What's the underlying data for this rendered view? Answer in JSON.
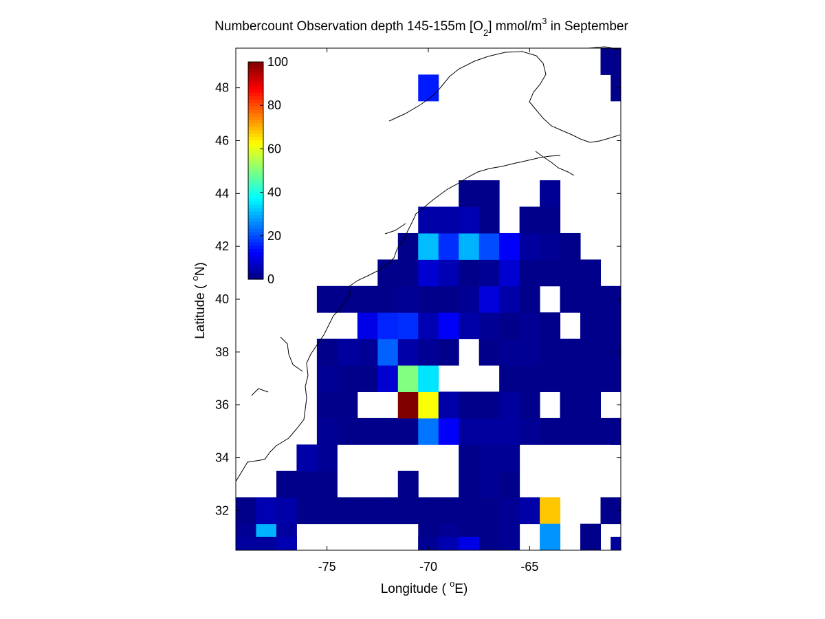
{
  "chart_data": {
    "type": "heatmap",
    "title": {
      "main": "Numbercount Observation depth 145-155m [O",
      "sub": "2",
      "rest": "] mmol/m",
      "sup": "3",
      "tail": " in September"
    },
    "xlabel": {
      "pre": "Longitude ( ",
      "sup": "o",
      "post": "E)"
    },
    "ylabel": {
      "pre": "Latitude ( ",
      "sup": "o",
      "post": "N)"
    },
    "xlim": [
      -79.5,
      -60.5
    ],
    "ylim": [
      30.5,
      49.5
    ],
    "xticks": [
      -75,
      -70,
      -65
    ],
    "xtick_labels": [
      "-75",
      "-70",
      "-65"
    ],
    "yticks": [
      32,
      34,
      36,
      38,
      40,
      42,
      44,
      46,
      48
    ],
    "ytick_labels": [
      "32",
      "34",
      "36",
      "38",
      "40",
      "42",
      "44",
      "46",
      "48"
    ],
    "cell_size_deg": 1,
    "colormap": "jet",
    "color_limits": [
      0,
      100
    ],
    "colorbar": {
      "ticks": [
        0,
        20,
        40,
        60,
        80,
        100
      ],
      "tick_labels": [
        "0",
        "20",
        "40",
        "60",
        "80",
        "100"
      ],
      "placement": "inside upper-left"
    },
    "coastline": "East coast of North America, thin black line",
    "cells": [
      [
        -79,
        31,
        2
      ],
      [
        -78,
        31,
        30
      ],
      [
        -77,
        31,
        3
      ],
      [
        -79,
        32,
        1
      ],
      [
        -78,
        32,
        5
      ],
      [
        -77,
        32,
        4
      ],
      [
        -76,
        32,
        1
      ],
      [
        -75,
        32,
        1
      ],
      [
        -74,
        32,
        1
      ],
      [
        -73,
        32,
        1
      ],
      [
        -72,
        32,
        1
      ],
      [
        -71,
        32,
        1
      ],
      [
        -70,
        32,
        1
      ],
      [
        -69,
        32,
        1
      ],
      [
        -68,
        32,
        1
      ],
      [
        -67,
        32,
        1
      ],
      [
        -66,
        32,
        2
      ],
      [
        -65,
        32,
        4
      ],
      [
        -64,
        32,
        68
      ],
      [
        -61,
        32,
        1
      ],
      [
        -70,
        31,
        1
      ],
      [
        -69,
        31,
        2
      ],
      [
        -68,
        31,
        1
      ],
      [
        -67,
        31,
        1
      ],
      [
        -66,
        31,
        2
      ],
      [
        -64,
        31,
        27
      ],
      [
        -62,
        31,
        1
      ],
      [
        -79,
        30.5,
        3
      ],
      [
        -78,
        30.5,
        3
      ],
      [
        -77,
        30.5,
        5
      ],
      [
        -70,
        30.5,
        2
      ],
      [
        -69,
        30.5,
        5
      ],
      [
        -68,
        30.5,
        10
      ],
      [
        -60.5,
        30.5,
        3
      ],
      [
        -77,
        33,
        1
      ],
      [
        -76,
        33,
        1
      ],
      [
        -75,
        33,
        1
      ],
      [
        -71,
        33,
        1
      ],
      [
        -68,
        33,
        1
      ],
      [
        -67,
        33,
        2
      ],
      [
        -66,
        33,
        1
      ],
      [
        -76,
        34,
        4
      ],
      [
        -75,
        34,
        2
      ],
      [
        -68,
        34,
        1
      ],
      [
        -67,
        34,
        2
      ],
      [
        -66,
        34,
        2
      ],
      [
        -75,
        35,
        2
      ],
      [
        -74,
        35,
        1
      ],
      [
        -73,
        35,
        1
      ],
      [
        -72,
        35,
        1
      ],
      [
        -71,
        35,
        1
      ],
      [
        -70,
        35,
        24
      ],
      [
        -69,
        35,
        12
      ],
      [
        -68,
        35,
        3
      ],
      [
        -67,
        35,
        3
      ],
      [
        -66,
        35,
        3
      ],
      [
        -65,
        35,
        2
      ],
      [
        -64,
        35,
        1
      ],
      [
        -63,
        35,
        1
      ],
      [
        -62,
        35,
        1
      ],
      [
        -61,
        35,
        1
      ],
      [
        -60.5,
        35,
        1
      ],
      [
        -75,
        36,
        1
      ],
      [
        -74,
        36,
        1
      ],
      [
        -71,
        36,
        100
      ],
      [
        -70,
        36,
        62
      ],
      [
        -69,
        36,
        4
      ],
      [
        -68,
        36,
        1
      ],
      [
        -67,
        36,
        1
      ],
      [
        -66,
        36,
        3
      ],
      [
        -65,
        36,
        1
      ],
      [
        -63,
        36,
        1
      ],
      [
        -62,
        36,
        1
      ],
      [
        -75,
        37,
        2
      ],
      [
        -74,
        37,
        1
      ],
      [
        -73,
        37,
        1
      ],
      [
        -72,
        37,
        8
      ],
      [
        -71,
        37,
        50
      ],
      [
        -70,
        37,
        35
      ],
      [
        -66,
        37,
        1
      ],
      [
        -65,
        37,
        1
      ],
      [
        -64,
        37,
        1
      ],
      [
        -63,
        37,
        1
      ],
      [
        -62,
        37,
        1
      ],
      [
        -61,
        37,
        1
      ],
      [
        -75,
        38,
        1
      ],
      [
        -74,
        38,
        3
      ],
      [
        -73,
        38,
        2
      ],
      [
        -72,
        38,
        22
      ],
      [
        -71,
        38,
        4
      ],
      [
        -70,
        38,
        2
      ],
      [
        -69,
        38,
        1
      ],
      [
        -67,
        38,
        1
      ],
      [
        -66,
        38,
        2
      ],
      [
        -65,
        38,
        2
      ],
      [
        -64,
        38,
        1
      ],
      [
        -63,
        38,
        1
      ],
      [
        -62,
        38,
        1
      ],
      [
        -61,
        38,
        1
      ],
      [
        -73,
        39,
        10
      ],
      [
        -72,
        39,
        16
      ],
      [
        -71,
        39,
        17
      ],
      [
        -70,
        39,
        5
      ],
      [
        -69,
        39,
        12
      ],
      [
        -68,
        39,
        4
      ],
      [
        -67,
        39,
        2
      ],
      [
        -66,
        39,
        1
      ],
      [
        -65,
        39,
        2
      ],
      [
        -64,
        39,
        1
      ],
      [
        -62,
        39,
        1
      ],
      [
        -61,
        39,
        1
      ],
      [
        -75,
        40,
        1
      ],
      [
        -74,
        40,
        1
      ],
      [
        -73,
        40,
        1
      ],
      [
        -72,
        40,
        1
      ],
      [
        -71,
        40,
        2
      ],
      [
        -70,
        40,
        1
      ],
      [
        -69,
        40,
        1
      ],
      [
        -68,
        40,
        2
      ],
      [
        -67,
        40,
        9
      ],
      [
        -66,
        40,
        4
      ],
      [
        -65,
        40,
        1
      ],
      [
        -63,
        40,
        1
      ],
      [
        -62,
        40,
        1
      ],
      [
        -61,
        40,
        1
      ],
      [
        -72,
        41,
        1
      ],
      [
        -71,
        41,
        1
      ],
      [
        -70,
        41,
        8
      ],
      [
        -69,
        41,
        5
      ],
      [
        -68,
        41,
        1
      ],
      [
        -67,
        41,
        2
      ],
      [
        -66,
        41,
        8
      ],
      [
        -65,
        41,
        1
      ],
      [
        -64,
        41,
        1
      ],
      [
        -63,
        41,
        1
      ],
      [
        -62,
        41,
        1
      ],
      [
        -71,
        42,
        1
      ],
      [
        -70,
        42,
        31
      ],
      [
        -69,
        42,
        17
      ],
      [
        -68,
        42,
        30
      ],
      [
        -67,
        42,
        20
      ],
      [
        -66,
        42,
        12
      ],
      [
        -65,
        42,
        3
      ],
      [
        -64,
        42,
        2
      ],
      [
        -63,
        42,
        1
      ],
      [
        -70,
        43,
        4
      ],
      [
        -69,
        43,
        4
      ],
      [
        -68,
        43,
        5
      ],
      [
        -67,
        43,
        1
      ],
      [
        -65,
        43,
        1
      ],
      [
        -64,
        43,
        1
      ],
      [
        -68,
        44,
        1
      ],
      [
        -67,
        44,
        1
      ],
      [
        -64,
        44,
        2
      ],
      [
        -70,
        48,
        15
      ],
      [
        -61,
        49,
        1
      ],
      [
        -60.5,
        48,
        1
      ]
    ]
  }
}
